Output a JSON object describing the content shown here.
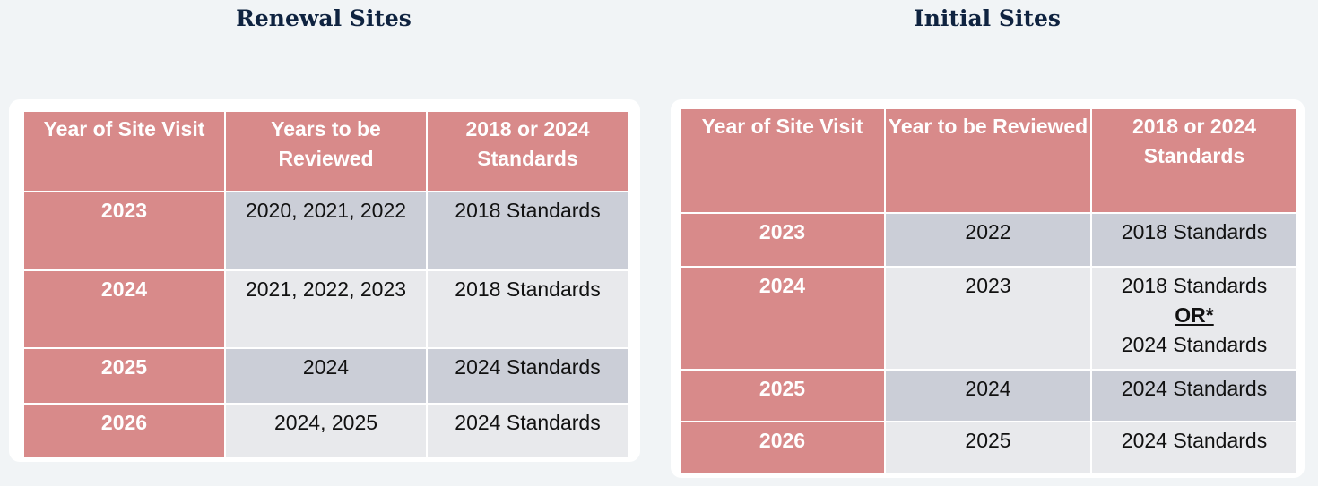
{
  "renewal": {
    "title": "Renewal Sites",
    "headers": [
      "Year of Site Visit",
      "Years to be Reviewed",
      "2018 or 2024 Standards"
    ],
    "rows": [
      {
        "year": "2023",
        "reviewed": "2020, 2021, 2022",
        "standards": "2018 Standards"
      },
      {
        "year": "2024",
        "reviewed": "2021, 2022, 2023",
        "standards": "2018 Standards"
      },
      {
        "year": "2025",
        "reviewed": "2024",
        "standards": "2024 Standards"
      },
      {
        "year": "2026",
        "reviewed": "2024, 2025",
        "standards": "2024 Standards"
      }
    ]
  },
  "initial": {
    "title": "Initial Sites",
    "headers": [
      "Year of Site Visit",
      "Year to be Reviewed",
      "2018 or 2024 Standards"
    ],
    "rows": [
      {
        "year": "2023",
        "reviewed": "2022",
        "standards": "2018 Standards"
      },
      {
        "year": "2024",
        "reviewed": "2023",
        "standards_line1": "2018 Standards",
        "standards_or": "OR*",
        "standards_line2": "2024 Standards"
      },
      {
        "year": "2025",
        "reviewed": "2024",
        "standards": "2024 Standards"
      },
      {
        "year": "2026",
        "reviewed": "2025",
        "standards": "2024 Standards"
      }
    ]
  },
  "colors": {
    "header_fill": "#d88a8a",
    "dark_cell": "#cbced7",
    "light_cell": "#e8e9ec",
    "heading_text": "#0f2340"
  }
}
